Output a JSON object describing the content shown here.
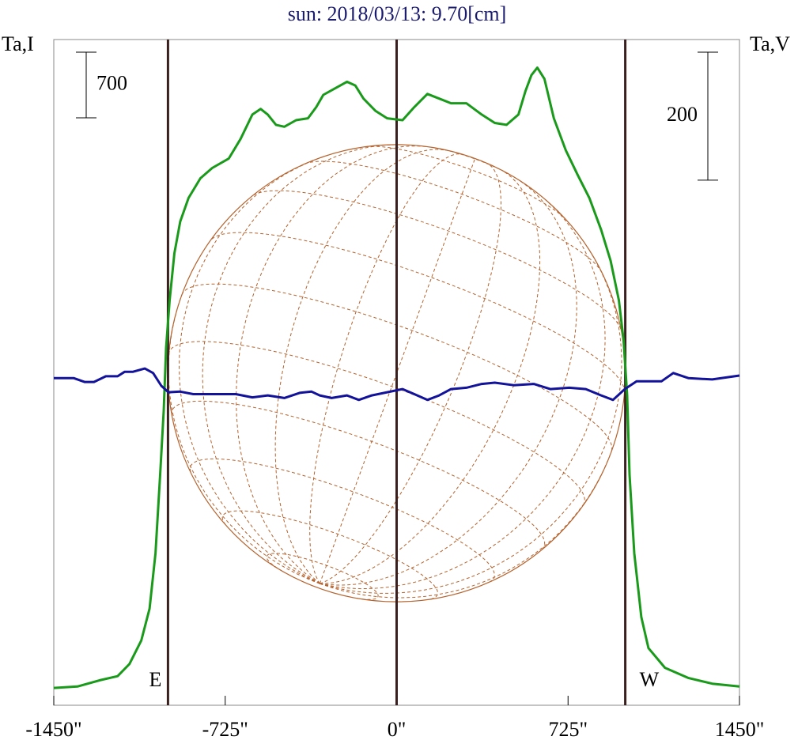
{
  "chart_data": {
    "type": "line",
    "title": "sun: 2018/03/13: 9.70[cm]",
    "y_label": "Ta,I",
    "y2_label": "Ta,V",
    "xlim": [
      -1450,
      1450
    ],
    "xticks": [
      {
        "value": -1450,
        "label": "-1450\""
      },
      {
        "value": -725,
        "label": "-725\""
      },
      {
        "value": 0,
        "label": "0\""
      },
      {
        "value": 725,
        "label": "725\""
      },
      {
        "value": 1450,
        "label": "1450\""
      }
    ],
    "ylim": [
      0,
      7100
    ],
    "y2lim": [
      -500,
      540
    ],
    "y_scale_bar": 700,
    "y2_scale_bar": 200,
    "limb_lines": [
      -967,
      0,
      967
    ],
    "limb_labels": [
      "E",
      "W"
    ],
    "series": [
      {
        "name": "Ta,I",
        "color": "#1a9a1a",
        "x": [
          -1450,
          -1350,
          -1250,
          -1180,
          -1130,
          -1080,
          -1045,
          -1020,
          -1000,
          -985,
          -975,
          -960,
          -940,
          -915,
          -880,
          -830,
          -780,
          -710,
          -660,
          -610,
          -575,
          -545,
          -510,
          -475,
          -425,
          -375,
          -340,
          -310,
          -260,
          -210,
          -175,
          -140,
          -90,
          -40,
          25,
          75,
          130,
          180,
          230,
          295,
          360,
          415,
          465,
          515,
          545,
          570,
          595,
          625,
          665,
          715,
          765,
          815,
          865,
          905,
          940,
          960,
          975,
          985,
          1005,
          1035,
          1065,
          1135,
          1235,
          1335,
          1450
        ],
        "values": [
          185,
          200,
          270,
          310,
          440,
          690,
          1030,
          1620,
          2460,
          3140,
          3810,
          4320,
          4820,
          5160,
          5410,
          5620,
          5730,
          5830,
          6040,
          6300,
          6360,
          6300,
          6190,
          6170,
          6240,
          6260,
          6380,
          6510,
          6580,
          6650,
          6610,
          6470,
          6340,
          6260,
          6240,
          6380,
          6520,
          6470,
          6420,
          6420,
          6300,
          6210,
          6190,
          6300,
          6550,
          6720,
          6800,
          6680,
          6260,
          5920,
          5660,
          5410,
          5070,
          4740,
          4320,
          3890,
          3300,
          2460,
          1620,
          940,
          610,
          400,
          290,
          230,
          200
        ]
      },
      {
        "name": "Ta,V",
        "color": "#12129a",
        "axis": "y2",
        "x": [
          -1450,
          -1365,
          -1320,
          -1280,
          -1230,
          -1180,
          -1150,
          -1115,
          -1065,
          -1030,
          -995,
          -965,
          -915,
          -860,
          -780,
          -680,
          -610,
          -545,
          -475,
          -410,
          -360,
          -325,
          -275,
          -210,
          -160,
          -105,
          -40,
          25,
          75,
          130,
          180,
          230,
          295,
          360,
          415,
          495,
          580,
          650,
          730,
          800,
          865,
          915,
          965,
          1015,
          1120,
          1170,
          1235,
          1335,
          1450
        ],
        "values": [
          11,
          11,
          5,
          5,
          14,
          14,
          21,
          21,
          26,
          19,
          -1,
          -11,
          -10,
          -14,
          -14,
          -14,
          -19,
          -16,
          -20,
          -12,
          -10,
          -16,
          -20,
          -16,
          -23,
          -16,
          -11,
          -6,
          -14,
          -23,
          -16,
          -6,
          -4,
          2,
          4,
          0,
          2,
          -6,
          -4,
          -6,
          -16,
          -23,
          -6,
          6,
          6,
          19,
          11,
          9,
          15
        ]
      }
    ],
    "line_color": "#3a1f1f",
    "disk_color": "#b5632e"
  }
}
